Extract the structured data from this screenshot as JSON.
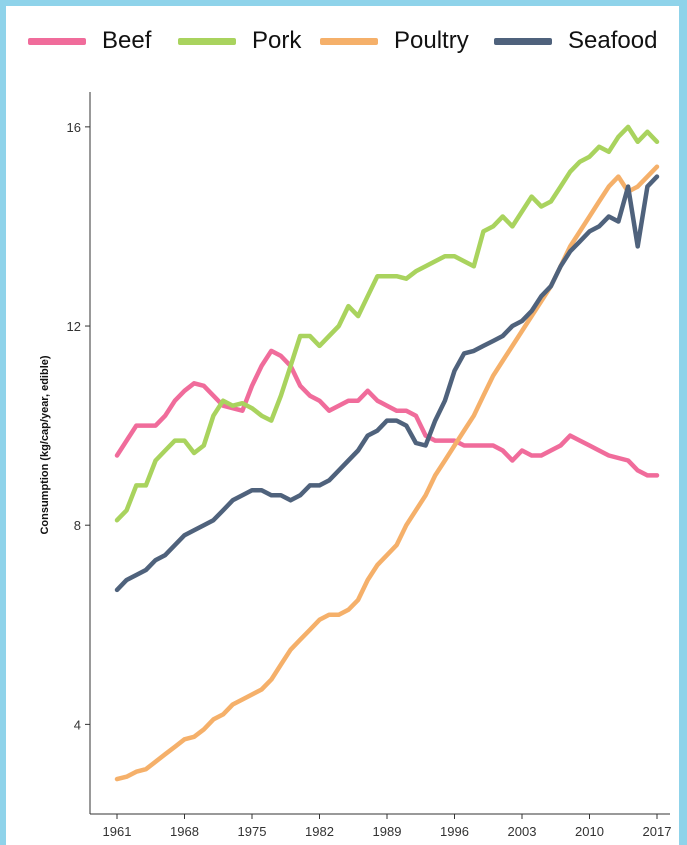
{
  "chart_data": {
    "type": "line",
    "title": "",
    "xlabel": "",
    "ylabel": "Consumption (kg/cap/year, edible)",
    "xlim": [
      1961,
      2017
    ],
    "ylim": [
      2.2,
      16.7
    ],
    "x_ticks": [
      "1961",
      "1968",
      "1975",
      "1982",
      "1989",
      "1996",
      "2003",
      "2010",
      "2017"
    ],
    "y_ticks": [
      "4",
      "8",
      "12",
      "16"
    ],
    "legend_position": "top",
    "grid": false,
    "series": [
      {
        "name": "Beef",
        "color": "#f06c9b",
        "points": [
          [
            1961,
            9.4
          ],
          [
            1962,
            9.7
          ],
          [
            1963,
            10.0
          ],
          [
            1964,
            10.0
          ],
          [
            1965,
            10.0
          ],
          [
            1966,
            10.2
          ],
          [
            1967,
            10.5
          ],
          [
            1968,
            10.7
          ],
          [
            1969,
            10.85
          ],
          [
            1970,
            10.8
          ],
          [
            1971,
            10.6
          ],
          [
            1972,
            10.4
          ],
          [
            1973,
            10.35
          ],
          [
            1974,
            10.3
          ],
          [
            1975,
            10.8
          ],
          [
            1976,
            11.2
          ],
          [
            1977,
            11.5
          ],
          [
            1978,
            11.4
          ],
          [
            1979,
            11.2
          ],
          [
            1980,
            10.8
          ],
          [
            1981,
            10.6
          ],
          [
            1982,
            10.5
          ],
          [
            1983,
            10.3
          ],
          [
            1984,
            10.4
          ],
          [
            1985,
            10.5
          ],
          [
            1986,
            10.5
          ],
          [
            1987,
            10.7
          ],
          [
            1988,
            10.5
          ],
          [
            1989,
            10.4
          ],
          [
            1990,
            10.3
          ],
          [
            1991,
            10.3
          ],
          [
            1992,
            10.2
          ],
          [
            1993,
            9.8
          ],
          [
            1994,
            9.7
          ],
          [
            1995,
            9.7
          ],
          [
            1996,
            9.7
          ],
          [
            1997,
            9.6
          ],
          [
            1998,
            9.6
          ],
          [
            1999,
            9.6
          ],
          [
            2000,
            9.6
          ],
          [
            2001,
            9.5
          ],
          [
            2002,
            9.3
          ],
          [
            2003,
            9.5
          ],
          [
            2004,
            9.4
          ],
          [
            2005,
            9.4
          ],
          [
            2006,
            9.5
          ],
          [
            2007,
            9.6
          ],
          [
            2008,
            9.8
          ],
          [
            2009,
            9.7
          ],
          [
            2010,
            9.6
          ],
          [
            2011,
            9.5
          ],
          [
            2012,
            9.4
          ],
          [
            2013,
            9.35
          ],
          [
            2014,
            9.3
          ],
          [
            2015,
            9.1
          ],
          [
            2016,
            9.0
          ],
          [
            2017,
            9.0
          ]
        ]
      },
      {
        "name": "Pork",
        "color": "#a9d35e",
        "points": [
          [
            1961,
            8.1
          ],
          [
            1962,
            8.3
          ],
          [
            1963,
            8.8
          ],
          [
            1964,
            8.8
          ],
          [
            1965,
            9.3
          ],
          [
            1966,
            9.5
          ],
          [
            1967,
            9.7
          ],
          [
            1968,
            9.7
          ],
          [
            1969,
            9.45
          ],
          [
            1970,
            9.6
          ],
          [
            1971,
            10.2
          ],
          [
            1972,
            10.5
          ],
          [
            1973,
            10.4
          ],
          [
            1974,
            10.45
          ],
          [
            1975,
            10.35
          ],
          [
            1976,
            10.2
          ],
          [
            1977,
            10.1
          ],
          [
            1978,
            10.6
          ],
          [
            1979,
            11.2
          ],
          [
            1980,
            11.8
          ],
          [
            1981,
            11.8
          ],
          [
            1982,
            11.6
          ],
          [
            1983,
            11.8
          ],
          [
            1984,
            12.0
          ],
          [
            1985,
            12.4
          ],
          [
            1986,
            12.2
          ],
          [
            1987,
            12.6
          ],
          [
            1988,
            13.0
          ],
          [
            1989,
            13.0
          ],
          [
            1990,
            13.0
          ],
          [
            1991,
            12.95
          ],
          [
            1992,
            13.1
          ],
          [
            1993,
            13.2
          ],
          [
            1994,
            13.3
          ],
          [
            1995,
            13.4
          ],
          [
            1996,
            13.4
          ],
          [
            1997,
            13.3
          ],
          [
            1998,
            13.2
          ],
          [
            1999,
            13.9
          ],
          [
            2000,
            14.0
          ],
          [
            2001,
            14.2
          ],
          [
            2002,
            14.0
          ],
          [
            2003,
            14.3
          ],
          [
            2004,
            14.6
          ],
          [
            2005,
            14.4
          ],
          [
            2006,
            14.5
          ],
          [
            2007,
            14.8
          ],
          [
            2008,
            15.1
          ],
          [
            2009,
            15.3
          ],
          [
            2010,
            15.4
          ],
          [
            2011,
            15.6
          ],
          [
            2012,
            15.5
          ],
          [
            2013,
            15.8
          ],
          [
            2014,
            16.0
          ],
          [
            2015,
            15.7
          ],
          [
            2016,
            15.9
          ],
          [
            2017,
            15.7
          ]
        ]
      },
      {
        "name": "Poultry",
        "color": "#f5b06a",
        "points": [
          [
            1961,
            2.9
          ],
          [
            1962,
            2.95
          ],
          [
            1963,
            3.05
          ],
          [
            1964,
            3.1
          ],
          [
            1965,
            3.25
          ],
          [
            1966,
            3.4
          ],
          [
            1967,
            3.55
          ],
          [
            1968,
            3.7
          ],
          [
            1969,
            3.75
          ],
          [
            1970,
            3.9
          ],
          [
            1971,
            4.1
          ],
          [
            1972,
            4.2
          ],
          [
            1973,
            4.4
          ],
          [
            1974,
            4.5
          ],
          [
            1975,
            4.6
          ],
          [
            1976,
            4.7
          ],
          [
            1977,
            4.9
          ],
          [
            1978,
            5.2
          ],
          [
            1979,
            5.5
          ],
          [
            1980,
            5.7
          ],
          [
            1981,
            5.9
          ],
          [
            1982,
            6.1
          ],
          [
            1983,
            6.2
          ],
          [
            1984,
            6.2
          ],
          [
            1985,
            6.3
          ],
          [
            1986,
            6.5
          ],
          [
            1987,
            6.9
          ],
          [
            1988,
            7.2
          ],
          [
            1989,
            7.4
          ],
          [
            1990,
            7.6
          ],
          [
            1991,
            8.0
          ],
          [
            1992,
            8.3
          ],
          [
            1993,
            8.6
          ],
          [
            1994,
            9.0
          ],
          [
            1995,
            9.3
          ],
          [
            1996,
            9.6
          ],
          [
            1997,
            9.9
          ],
          [
            1998,
            10.2
          ],
          [
            1999,
            10.6
          ],
          [
            2000,
            11.0
          ],
          [
            2001,
            11.3
          ],
          [
            2002,
            11.6
          ],
          [
            2003,
            11.9
          ],
          [
            2004,
            12.2
          ],
          [
            2005,
            12.5
          ],
          [
            2006,
            12.8
          ],
          [
            2007,
            13.2
          ],
          [
            2008,
            13.6
          ],
          [
            2009,
            13.9
          ],
          [
            2010,
            14.2
          ],
          [
            2011,
            14.5
          ],
          [
            2012,
            14.8
          ],
          [
            2013,
            15.0
          ],
          [
            2014,
            14.7
          ],
          [
            2015,
            14.8
          ],
          [
            2016,
            15.0
          ],
          [
            2017,
            15.2
          ]
        ]
      },
      {
        "name": "Seafood",
        "color": "#4f627c",
        "points": [
          [
            1961,
            6.7
          ],
          [
            1962,
            6.9
          ],
          [
            1963,
            7.0
          ],
          [
            1964,
            7.1
          ],
          [
            1965,
            7.3
          ],
          [
            1966,
            7.4
          ],
          [
            1967,
            7.6
          ],
          [
            1968,
            7.8
          ],
          [
            1969,
            7.9
          ],
          [
            1970,
            8.0
          ],
          [
            1971,
            8.1
          ],
          [
            1972,
            8.3
          ],
          [
            1973,
            8.5
          ],
          [
            1974,
            8.6
          ],
          [
            1975,
            8.7
          ],
          [
            1976,
            8.7
          ],
          [
            1977,
            8.6
          ],
          [
            1978,
            8.6
          ],
          [
            1979,
            8.5
          ],
          [
            1980,
            8.6
          ],
          [
            1981,
            8.8
          ],
          [
            1982,
            8.8
          ],
          [
            1983,
            8.9
          ],
          [
            1984,
            9.1
          ],
          [
            1985,
            9.3
          ],
          [
            1986,
            9.5
          ],
          [
            1987,
            9.8
          ],
          [
            1988,
            9.9
          ],
          [
            1989,
            10.1
          ],
          [
            1990,
            10.1
          ],
          [
            1991,
            10.0
          ],
          [
            1992,
            9.65
          ],
          [
            1993,
            9.6
          ],
          [
            1994,
            10.1
          ],
          [
            1995,
            10.5
          ],
          [
            1996,
            11.1
          ],
          [
            1997,
            11.45
          ],
          [
            1998,
            11.5
          ],
          [
            1999,
            11.6
          ],
          [
            2000,
            11.7
          ],
          [
            2001,
            11.8
          ],
          [
            2002,
            12.0
          ],
          [
            2003,
            12.1
          ],
          [
            2004,
            12.3
          ],
          [
            2005,
            12.6
          ],
          [
            2006,
            12.8
          ],
          [
            2007,
            13.2
          ],
          [
            2008,
            13.5
          ],
          [
            2009,
            13.7
          ],
          [
            2010,
            13.9
          ],
          [
            2011,
            14.0
          ],
          [
            2012,
            14.2
          ],
          [
            2013,
            14.1
          ],
          [
            2014,
            14.8
          ],
          [
            2015,
            13.6
          ],
          [
            2016,
            14.8
          ],
          [
            2017,
            15.0
          ]
        ]
      }
    ]
  }
}
